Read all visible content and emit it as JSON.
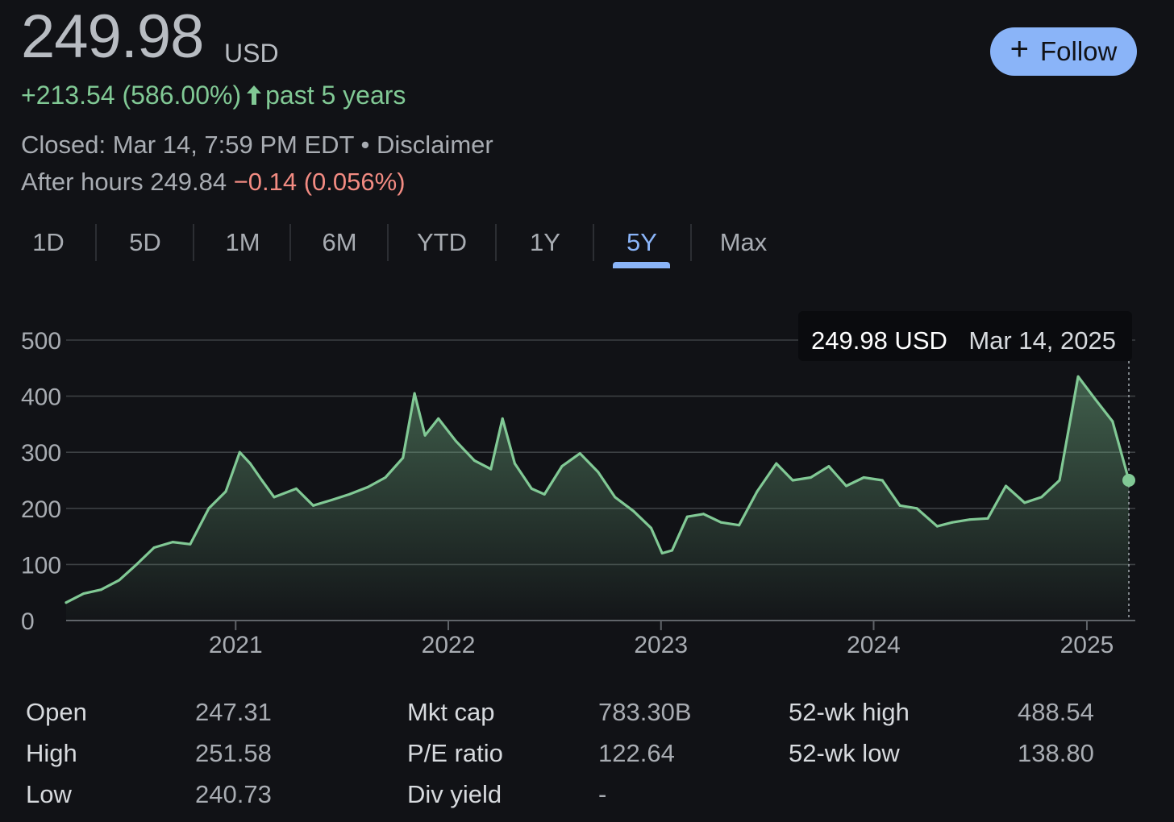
{
  "quote": {
    "price": "249.98",
    "currency": "USD",
    "change": "+213.54 (586.00%)",
    "change_period": "past 5 years",
    "closed": "Closed: Mar 14, 7:59 PM EDT",
    "separator": " • ",
    "disclaimer": "Disclaimer",
    "after_hours_label": "After hours 249.84",
    "after_hours_change": "−0.14 (0.056%)"
  },
  "follow_button": {
    "label": "Follow",
    "icon": "plus-icon"
  },
  "tabs": [
    {
      "label": "1D"
    },
    {
      "label": "5D"
    },
    {
      "label": "1M"
    },
    {
      "label": "6M"
    },
    {
      "label": "YTD"
    },
    {
      "label": "1Y"
    },
    {
      "label": "5Y",
      "active": true
    },
    {
      "label": "Max"
    }
  ],
  "stats": [
    {
      "label": "Open",
      "value": "247.31"
    },
    {
      "label": "High",
      "value": "251.58"
    },
    {
      "label": "Low",
      "value": "240.73"
    },
    {
      "label": "Mkt cap",
      "value": "783.30B"
    },
    {
      "label": "P/E ratio",
      "value": "122.64"
    },
    {
      "label": "Div yield",
      "value": "-"
    },
    {
      "label": "52-wk high",
      "value": "488.54"
    },
    {
      "label": "52-wk low",
      "value": "138.80"
    }
  ],
  "colors": {
    "accent": "#8ab4f8",
    "positive": "#81c995",
    "negative": "#f28b82",
    "background": "#111216"
  },
  "chart_data": {
    "type": "area",
    "x_range": [
      "2020-03-16",
      "2025-03-14"
    ],
    "ylim": [
      0,
      500
    ],
    "yticks": [
      "0",
      "100",
      "200",
      "300",
      "400",
      "500"
    ],
    "xticks": [
      "2021",
      "2022",
      "2023",
      "2024",
      "2025"
    ],
    "grid": true,
    "line_color": "#81c995",
    "tooltip": {
      "value": "249.98 USD",
      "date": "Mar 14, 2025"
    },
    "x": [
      "2020-03-16",
      "2020-04-15",
      "2020-05-15",
      "2020-06-15",
      "2020-07-15",
      "2020-08-14",
      "2020-09-15",
      "2020-10-15",
      "2020-11-16",
      "2020-12-15",
      "2021-01-08",
      "2021-01-26",
      "2021-02-15",
      "2021-03-08",
      "2021-04-15",
      "2021-05-14",
      "2021-06-15",
      "2021-07-15",
      "2021-08-16",
      "2021-09-15",
      "2021-10-15",
      "2021-11-04",
      "2021-11-22",
      "2021-12-15",
      "2022-01-14",
      "2022-02-15",
      "2022-03-15",
      "2022-04-04",
      "2022-04-25",
      "2022-05-24",
      "2022-06-15",
      "2022-07-15",
      "2022-08-15",
      "2022-09-15",
      "2022-10-14",
      "2022-11-15",
      "2022-12-15",
      "2023-01-03",
      "2023-01-20",
      "2023-02-15",
      "2023-03-15",
      "2023-04-14",
      "2023-05-15",
      "2023-06-15",
      "2023-07-18",
      "2023-08-15",
      "2023-09-15",
      "2023-10-16",
      "2023-11-15",
      "2023-12-15",
      "2024-01-16",
      "2024-02-15",
      "2024-03-15",
      "2024-04-19",
      "2024-05-15",
      "2024-06-14",
      "2024-07-15",
      "2024-08-15",
      "2024-09-16",
      "2024-10-15",
      "2024-11-15",
      "2024-12-17",
      "2025-01-15",
      "2025-02-14",
      "2025-03-14"
    ],
    "values": [
      32,
      48,
      55,
      72,
      100,
      130,
      140,
      136,
      200,
      230,
      300,
      280,
      250,
      220,
      235,
      205,
      215,
      225,
      238,
      255,
      290,
      405,
      330,
      360,
      320,
      285,
      270,
      360,
      280,
      235,
      225,
      275,
      298,
      265,
      220,
      195,
      165,
      120,
      125,
      185,
      190,
      175,
      170,
      230,
      280,
      250,
      255,
      275,
      240,
      255,
      250,
      205,
      200,
      168,
      175,
      180,
      182,
      240,
      210,
      220,
      250,
      435,
      395,
      355,
      249.98
    ]
  }
}
